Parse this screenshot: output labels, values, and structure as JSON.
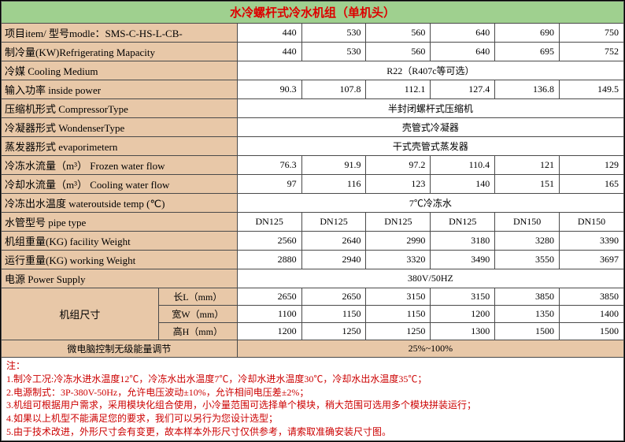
{
  "title": "水冷螺杆式冷水机组（单机头）",
  "columns_count": 6,
  "rows": [
    {
      "type": "data",
      "label": "项目item/ 型号modle：SMS-C-HS-L-CB-",
      "cells": [
        "440",
        "530",
        "560",
        "640",
        "690",
        "750"
      ]
    },
    {
      "type": "data",
      "label": "制冷量(KW)Refrigerating Mapacity",
      "cells": [
        "440",
        "530",
        "560",
        "640",
        "695",
        "752"
      ]
    },
    {
      "type": "merged",
      "label": "冷媒 Cooling Medium",
      "text": "R22（R407c等可选）"
    },
    {
      "type": "data",
      "label": "输入功率 inside power",
      "cells": [
        "90.3",
        "107.8",
        "112.1",
        "127.4",
        "136.8",
        "149.5"
      ]
    },
    {
      "type": "merged",
      "label": "压缩机形式 CompressorType",
      "text": "半封闭螺杆式压缩机"
    },
    {
      "type": "merged",
      "label": "冷凝器形式 WondenserType",
      "text": "壳管式冷凝器"
    },
    {
      "type": "merged",
      "label": "蒸发器形式 evaporimetern",
      "text": "干式壳管式蒸发器"
    },
    {
      "type": "data",
      "label": "冷冻水流量（m³） Frozen water flow",
      "cells": [
        "76.3",
        "91.9",
        "97.2",
        "110.4",
        "121",
        "129"
      ]
    },
    {
      "type": "data",
      "label": "冷却水流量（m³） Cooling water flow",
      "cells": [
        "97",
        "116",
        "123",
        "140",
        "151",
        "165"
      ]
    },
    {
      "type": "merged",
      "label": "冷冻出水温度 wateroutside temp (℃)",
      "text": "7℃冷冻水"
    },
    {
      "type": "data",
      "label": "水管型号 pipe type",
      "cells": [
        "DN125",
        "DN125",
        "DN125",
        "DN125",
        "DN150",
        "DN150"
      ],
      "align": "center"
    },
    {
      "type": "data",
      "label": "机组重量(KG) facility Weight",
      "cells": [
        "2560",
        "2640",
        "2990",
        "3180",
        "3280",
        "3390"
      ]
    },
    {
      "type": "data",
      "label": "运行重量(KG) working Weight",
      "cells": [
        "2880",
        "2940",
        "3320",
        "3490",
        "3550",
        "3697"
      ]
    },
    {
      "type": "merged",
      "label": "电源 Power Supply",
      "text": "380V/50HZ"
    }
  ],
  "dimensions": {
    "label": "机组尺寸",
    "sub": [
      {
        "name": "长L（mm）",
        "cells": [
          "2650",
          "2650",
          "3150",
          "3150",
          "3850",
          "3850"
        ]
      },
      {
        "name": "宽W（mm）",
        "cells": [
          "1100",
          "1150",
          "1150",
          "1200",
          "1350",
          "1400"
        ]
      },
      {
        "name": "高H（mm）",
        "cells": [
          "1200",
          "1250",
          "1250",
          "1300",
          "1500",
          "1500"
        ]
      }
    ]
  },
  "energy": {
    "label": "微电脑控制无级能量调节",
    "value": "25%~100%"
  },
  "notes": {
    "head": "注：",
    "lines": [
      "1.制冷工况:冷冻水进水温度12℃，冷冻水出水温度7℃，冷却水进水温度30℃，冷却水出水温度35℃；",
      "2.电源制式：3P-380V-50Hz，允许电压波动±10%，允许相间电压差±2%；",
      "3.机组可根据用户需求，采用模块化组合使用，小冷量范围可选择单个模块，稍大范围可选用多个模块拼装运行；",
      "4.如果以上机型不能满足您的要求，我们可以另行为您设计选型；",
      "5.由于技术改进，外形尺寸会有变更，故本样本外形尺寸仅供参考，请索取准确安装尺寸图。"
    ]
  },
  "colors": {
    "title_bg": "#9fd08f",
    "title_fg": "#d00",
    "label_bg": "#e8c8a8",
    "border": "#4a4a4a",
    "notes_fg": "#c00"
  }
}
